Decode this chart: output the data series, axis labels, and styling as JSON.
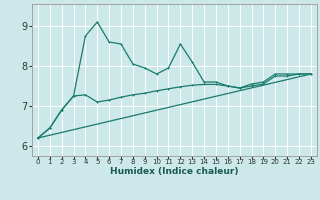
{
  "xlabel": "Humidex (Indice chaleur)",
  "bg_color": "#cce8e8",
  "line_color": "#1a7a6e",
  "grid_color": "#ffffff",
  "xlim": [
    -0.5,
    23.5
  ],
  "ylim": [
    5.75,
    9.55
  ],
  "yticks": [
    6,
    7,
    8,
    9
  ],
  "xticks": [
    0,
    1,
    2,
    3,
    4,
    5,
    6,
    7,
    8,
    9,
    10,
    11,
    12,
    13,
    14,
    15,
    16,
    17,
    18,
    19,
    20,
    21,
    22,
    23
  ],
  "line1_x": [
    0,
    1,
    2,
    3,
    4,
    5,
    6,
    7,
    8,
    9,
    10,
    11,
    12,
    13,
    14,
    15,
    16,
    17,
    18,
    19,
    20,
    21,
    22,
    23
  ],
  "line1_y": [
    6.2,
    6.45,
    6.9,
    7.25,
    8.75,
    9.1,
    8.6,
    8.55,
    8.05,
    7.95,
    7.8,
    7.95,
    8.55,
    8.1,
    7.6,
    7.6,
    7.5,
    7.45,
    7.55,
    7.6,
    7.8,
    7.8,
    7.8,
    7.8
  ],
  "line2_x": [
    0,
    1,
    2,
    3,
    4,
    5,
    6,
    7,
    8,
    9,
    10,
    11,
    12,
    13,
    14,
    15,
    16,
    17,
    18,
    19,
    20,
    21,
    22,
    23
  ],
  "line2_y": [
    6.2,
    6.45,
    6.9,
    7.25,
    7.28,
    7.1,
    7.15,
    7.22,
    7.28,
    7.32,
    7.38,
    7.43,
    7.48,
    7.52,
    7.54,
    7.54,
    7.5,
    7.45,
    7.5,
    7.55,
    7.75,
    7.75,
    7.8,
    7.8
  ],
  "line3_x": [
    0,
    23
  ],
  "line3_y": [
    6.2,
    7.8
  ]
}
